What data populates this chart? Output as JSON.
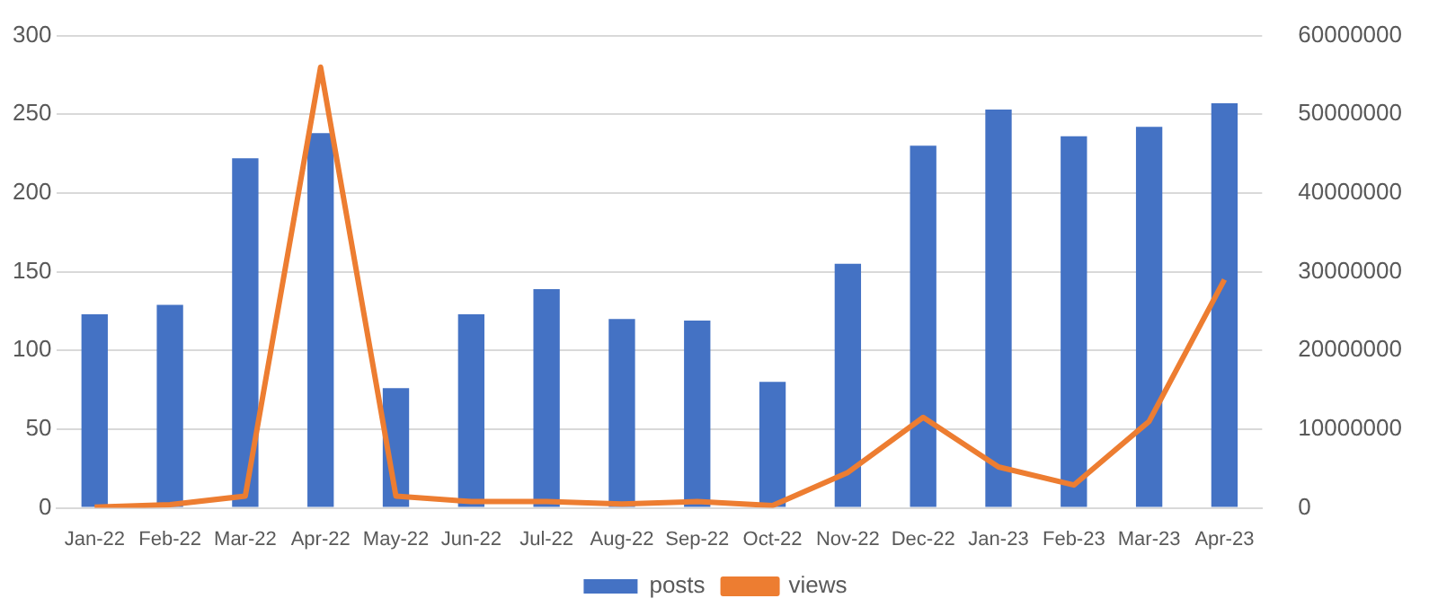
{
  "chart_data": {
    "type": "bar",
    "categories": [
      "Jan-22",
      "Feb-22",
      "Mar-22",
      "Apr-22",
      "May-22",
      "Jun-22",
      "Jul-22",
      "Aug-22",
      "Sep-22",
      "Oct-22",
      "Nov-22",
      "Dec-22",
      "Jan-23",
      "Feb-23",
      "Mar-23",
      "Apr-23"
    ],
    "series": [
      {
        "name": "posts",
        "color": "#4472c4",
        "values": [
          123,
          129,
          222,
          238,
          76,
          123,
          139,
          120,
          119,
          80,
          155,
          230,
          253,
          236,
          242,
          257
        ]
      },
      {
        "name": "views",
        "type": "line",
        "axis": "y2",
        "color": "#ed7d31",
        "values": [
          100000,
          400000,
          1500000,
          56000000,
          1500000,
          800000,
          800000,
          500000,
          800000,
          300000,
          4500000,
          11500000,
          5200000,
          2900000,
          11000000,
          29000000
        ]
      }
    ],
    "ylim": [
      0,
      300
    ],
    "yticks": [
      0,
      50,
      100,
      150,
      200,
      250,
      300
    ],
    "y2lim": [
      0,
      60000000
    ],
    "y2ticks": [
      0,
      10000000,
      20000000,
      30000000,
      40000000,
      50000000,
      60000000
    ],
    "grid": "y",
    "legend": "bottom",
    "marker": "none"
  }
}
